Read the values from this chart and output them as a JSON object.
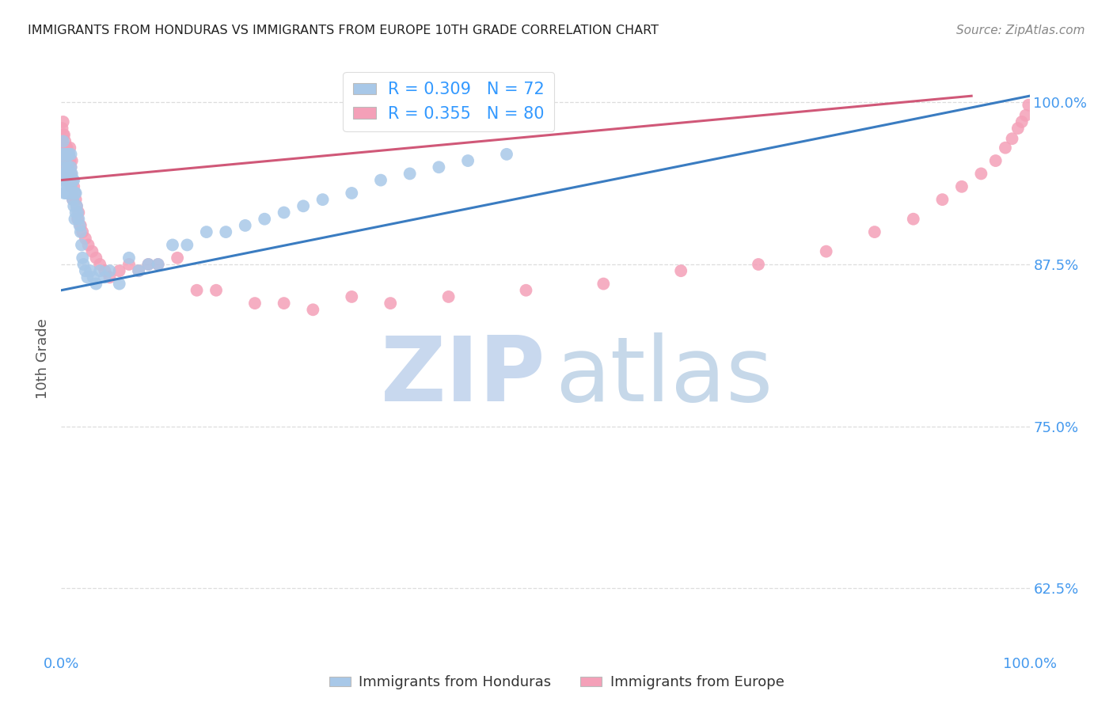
{
  "title": "IMMIGRANTS FROM HONDURAS VS IMMIGRANTS FROM EUROPE 10TH GRADE CORRELATION CHART",
  "source": "Source: ZipAtlas.com",
  "ylabel": "10th Grade",
  "y_ticks": [
    0.625,
    0.75,
    0.875,
    1.0
  ],
  "y_tick_labels": [
    "62.5%",
    "75.0%",
    "87.5%",
    "100.0%"
  ],
  "R_blue": 0.309,
  "N_blue": 72,
  "R_pink": 0.355,
  "N_pink": 80,
  "blue_scatter_color": "#a8c8e8",
  "pink_scatter_color": "#f4a0b8",
  "blue_line_color": "#3a7cc1",
  "pink_line_color": "#d05878",
  "legend_label_color": "#3399ff",
  "tick_label_color": "#4499ee",
  "title_color": "#222222",
  "source_color": "#888888",
  "grid_color": "#dddddd",
  "background_color": "#ffffff",
  "watermark_zip_color": "#c8d8ee",
  "watermark_atlas_color": "#98b8d8",
  "legend1_label": "Immigrants from Honduras",
  "legend2_label": "Immigrants from Europe",
  "xlim": [
    0.0,
    1.0
  ],
  "ylim": [
    0.575,
    1.03
  ],
  "blue_x": [
    0.001,
    0.001,
    0.002,
    0.002,
    0.003,
    0.003,
    0.003,
    0.004,
    0.004,
    0.005,
    0.005,
    0.005,
    0.006,
    0.006,
    0.006,
    0.007,
    0.007,
    0.007,
    0.008,
    0.008,
    0.008,
    0.009,
    0.009,
    0.01,
    0.01,
    0.01,
    0.011,
    0.011,
    0.012,
    0.012,
    0.013,
    0.013,
    0.014,
    0.014,
    0.015,
    0.015,
    0.016,
    0.017,
    0.018,
    0.019,
    0.02,
    0.021,
    0.022,
    0.023,
    0.025,
    0.027,
    0.03,
    0.033,
    0.036,
    0.04,
    0.045,
    0.05,
    0.06,
    0.07,
    0.08,
    0.09,
    0.1,
    0.115,
    0.13,
    0.15,
    0.17,
    0.19,
    0.21,
    0.23,
    0.25,
    0.27,
    0.3,
    0.33,
    0.36,
    0.39,
    0.42,
    0.46
  ],
  "blue_y": [
    0.96,
    0.94,
    0.97,
    0.95,
    0.96,
    0.945,
    0.93,
    0.955,
    0.935,
    0.96,
    0.945,
    0.93,
    0.945,
    0.96,
    0.93,
    0.95,
    0.935,
    0.96,
    0.945,
    0.93,
    0.96,
    0.945,
    0.93,
    0.95,
    0.935,
    0.96,
    0.945,
    0.93,
    0.94,
    0.925,
    0.94,
    0.92,
    0.93,
    0.91,
    0.93,
    0.915,
    0.92,
    0.915,
    0.91,
    0.905,
    0.9,
    0.89,
    0.88,
    0.875,
    0.87,
    0.865,
    0.87,
    0.865,
    0.86,
    0.87,
    0.865,
    0.87,
    0.86,
    0.88,
    0.87,
    0.875,
    0.875,
    0.89,
    0.89,
    0.9,
    0.9,
    0.905,
    0.91,
    0.915,
    0.92,
    0.925,
    0.93,
    0.94,
    0.945,
    0.95,
    0.955,
    0.96
  ],
  "pink_x": [
    0.001,
    0.001,
    0.001,
    0.002,
    0.002,
    0.002,
    0.002,
    0.003,
    0.003,
    0.003,
    0.004,
    0.004,
    0.004,
    0.005,
    0.005,
    0.005,
    0.006,
    0.006,
    0.006,
    0.007,
    0.007,
    0.007,
    0.008,
    0.008,
    0.009,
    0.009,
    0.009,
    0.01,
    0.01,
    0.01,
    0.011,
    0.011,
    0.012,
    0.012,
    0.013,
    0.014,
    0.015,
    0.016,
    0.017,
    0.018,
    0.02,
    0.022,
    0.025,
    0.028,
    0.032,
    0.036,
    0.04,
    0.045,
    0.05,
    0.06,
    0.07,
    0.08,
    0.09,
    0.1,
    0.12,
    0.14,
    0.16,
    0.2,
    0.23,
    0.26,
    0.3,
    0.34,
    0.4,
    0.48,
    0.56,
    0.64,
    0.72,
    0.79,
    0.84,
    0.88,
    0.91,
    0.93,
    0.95,
    0.965,
    0.975,
    0.982,
    0.988,
    0.992,
    0.996,
    0.999
  ],
  "pink_y": [
    0.98,
    0.97,
    0.96,
    0.975,
    0.965,
    0.955,
    0.985,
    0.975,
    0.96,
    0.95,
    0.97,
    0.955,
    0.945,
    0.965,
    0.95,
    0.94,
    0.96,
    0.945,
    0.965,
    0.955,
    0.94,
    0.95,
    0.945,
    0.96,
    0.955,
    0.94,
    0.965,
    0.95,
    0.935,
    0.945,
    0.94,
    0.955,
    0.94,
    0.925,
    0.935,
    0.93,
    0.925,
    0.92,
    0.91,
    0.915,
    0.905,
    0.9,
    0.895,
    0.89,
    0.885,
    0.88,
    0.875,
    0.87,
    0.865,
    0.87,
    0.875,
    0.87,
    0.875,
    0.875,
    0.88,
    0.855,
    0.855,
    0.845,
    0.845,
    0.84,
    0.85,
    0.845,
    0.85,
    0.855,
    0.86,
    0.87,
    0.875,
    0.885,
    0.9,
    0.91,
    0.925,
    0.935,
    0.945,
    0.955,
    0.965,
    0.972,
    0.98,
    0.985,
    0.99,
    0.998
  ]
}
